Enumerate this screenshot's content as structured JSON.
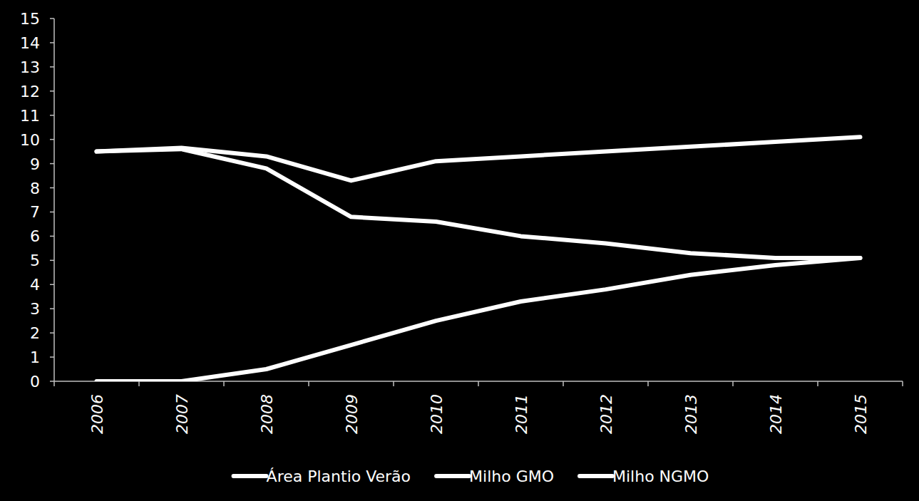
{
  "chart_data": {
    "type": "line",
    "categories": [
      "2006",
      "2007",
      "2008",
      "2009",
      "2010",
      "2011",
      "2012",
      "2013",
      "2014",
      "2015"
    ],
    "series": [
      {
        "name": "Área Plantio Verão",
        "color": "#ffffff",
        "values": [
          9.5,
          9.65,
          9.3,
          8.3,
          9.1,
          9.3,
          9.5,
          9.7,
          9.9,
          10.1
        ]
      },
      {
        "name": "Milho GMO",
        "color": "#ffffff",
        "values": [
          0,
          0,
          0.5,
          1.5,
          2.5,
          3.3,
          3.8,
          4.4,
          4.8,
          5.1
        ]
      },
      {
        "name": "Milho NGMO",
        "color": "#ffffff",
        "values": [
          9.5,
          9.6,
          8.8,
          6.8,
          6.6,
          6.0,
          5.7,
          5.3,
          5.1,
          5.1
        ]
      }
    ],
    "ylim": [
      0,
      15
    ],
    "yticks": [
      0,
      1,
      2,
      3,
      4,
      5,
      6,
      7,
      8,
      9,
      10,
      11,
      12,
      13,
      14,
      15
    ],
    "grid": false,
    "legend": "bottom"
  }
}
